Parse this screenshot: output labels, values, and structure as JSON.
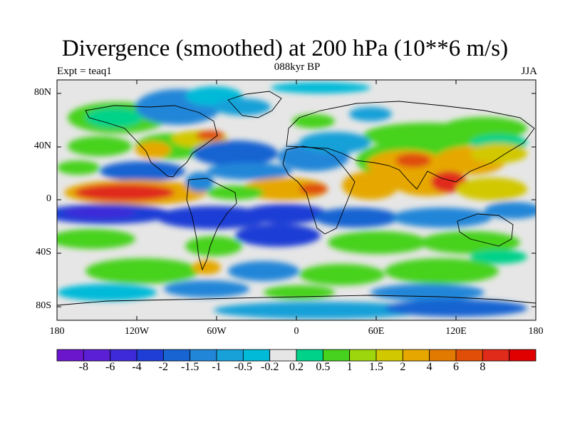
{
  "title": "Divergence (smoothed) at 200 hPa (10**6 m/s)",
  "left_label": "Expt = teaq1",
  "center_label": "088kyr BP",
  "right_label": "JJA",
  "map": {
    "lat_ticks": [
      "80N",
      "40N",
      "0",
      "40S",
      "80S"
    ],
    "lon_ticks": [
      "180",
      "120W",
      "60W",
      "0",
      "60E",
      "120E",
      "180"
    ]
  },
  "colorbar": {
    "colors": [
      "#6b16cc",
      "#5b1fd6",
      "#3e2ad8",
      "#1e3ed6",
      "#1764d2",
      "#2286d8",
      "#18a0d8",
      "#00bad8",
      "#e6e6e6",
      "#00d28a",
      "#46d21e",
      "#9ed60e",
      "#d2c800",
      "#e6a800",
      "#e27a00",
      "#e04e08",
      "#e02a1a",
      "#e00000"
    ],
    "labels": [
      "-8",
      "-6",
      "-4",
      "-2",
      "-1.5",
      "-1",
      "-0.5",
      "-0.2",
      "0.2",
      "0.5",
      "1",
      "1.5",
      "2",
      "4",
      "6",
      "8"
    ]
  }
}
